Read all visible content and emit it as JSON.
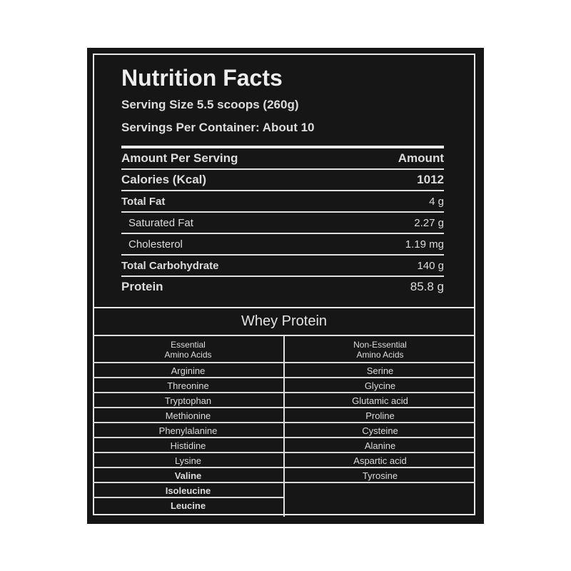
{
  "header": {
    "title": "Nutrition Facts",
    "serving_size": "Serving Size 5.5 scoops (260g)",
    "servings_per_container": "Servings Per Container:  About 10"
  },
  "facts": {
    "header_label": "Amount Per Serving",
    "header_value": "Amount",
    "rows": [
      {
        "label": "Calories (Kcal)",
        "value": "1012"
      },
      {
        "label": "Total Fat",
        "value": "4 g"
      },
      {
        "label": "Saturated Fat",
        "value": "2.27 g"
      },
      {
        "label": "Cholesterol",
        "value": "1.19 mg"
      },
      {
        "label": "Total Carbohydrate",
        "value": "140 g"
      },
      {
        "label": "Protein",
        "value": "85.8 g"
      }
    ]
  },
  "whey": {
    "title": "Whey Protein",
    "essential_header": [
      "Essential",
      "Amino Acids"
    ],
    "non_essential_header": [
      "Non-Essential",
      "Amino Acids"
    ],
    "essential": [
      "Arginine",
      "Threonine",
      "Tryptophan",
      "Methionine",
      "Phenylalanine",
      "Histidine",
      "Lysine",
      "Valine",
      "Isoleucine",
      "Leucine"
    ],
    "non_essential": [
      "Serine",
      "Glycine",
      "Glutamic acid",
      "Proline",
      "Cysteine",
      "Alanine",
      "Aspartic acid",
      "Tyrosine"
    ]
  },
  "colors": {
    "background": "#161616",
    "text": "#eeeeee"
  }
}
